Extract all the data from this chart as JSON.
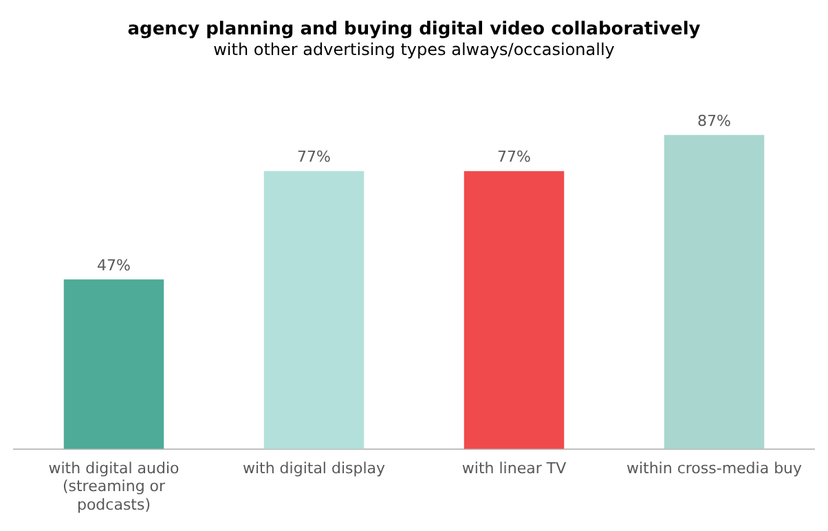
{
  "chart_data": {
    "type": "bar",
    "title": "agency planning and buying digital video collaboratively",
    "subtitle": "with other advertising types always/occasionally",
    "categories": [
      "with digital audio (streaming or podcasts)",
      "with digital display",
      "with linear TV",
      "within cross-media buy"
    ],
    "values": [
      47,
      77,
      77,
      87
    ],
    "colors": [
      "#4dab97",
      "#b3e0db",
      "#f04a4c",
      "#a9d6cf"
    ],
    "value_labels": [
      "47%",
      "77%",
      "77%",
      "87%"
    ],
    "grid": false,
    "legend": false
  }
}
